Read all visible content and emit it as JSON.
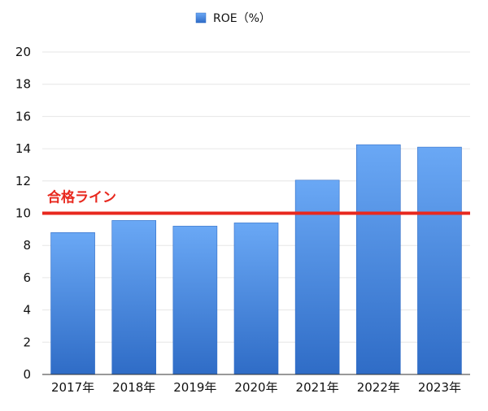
{
  "chart_data": {
    "type": "bar",
    "categories": [
      "2017年",
      "2018年",
      "2019年",
      "2020年",
      "2021年",
      "2022年",
      "2023年"
    ],
    "series": [
      {
        "name": "ROE（%）",
        "values": [
          8.8,
          9.55,
          9.2,
          9.4,
          12.05,
          14.25,
          14.1
        ]
      }
    ],
    "ylim": [
      0,
      20
    ],
    "yticks": [
      0,
      2,
      4,
      6,
      8,
      10,
      12,
      14,
      16,
      18,
      20
    ],
    "grid": true,
    "legend_position": "top-center",
    "threshold": {
      "label": "合格ライン",
      "value": 10
    },
    "colors": {
      "bar_top": "#6aa8f5",
      "bar_bottom": "#2f6cc6",
      "bar_edge": "#2f6cc6",
      "threshold": "#e8281e",
      "grid": "#e6e6e6",
      "axis": "#333333"
    }
  }
}
